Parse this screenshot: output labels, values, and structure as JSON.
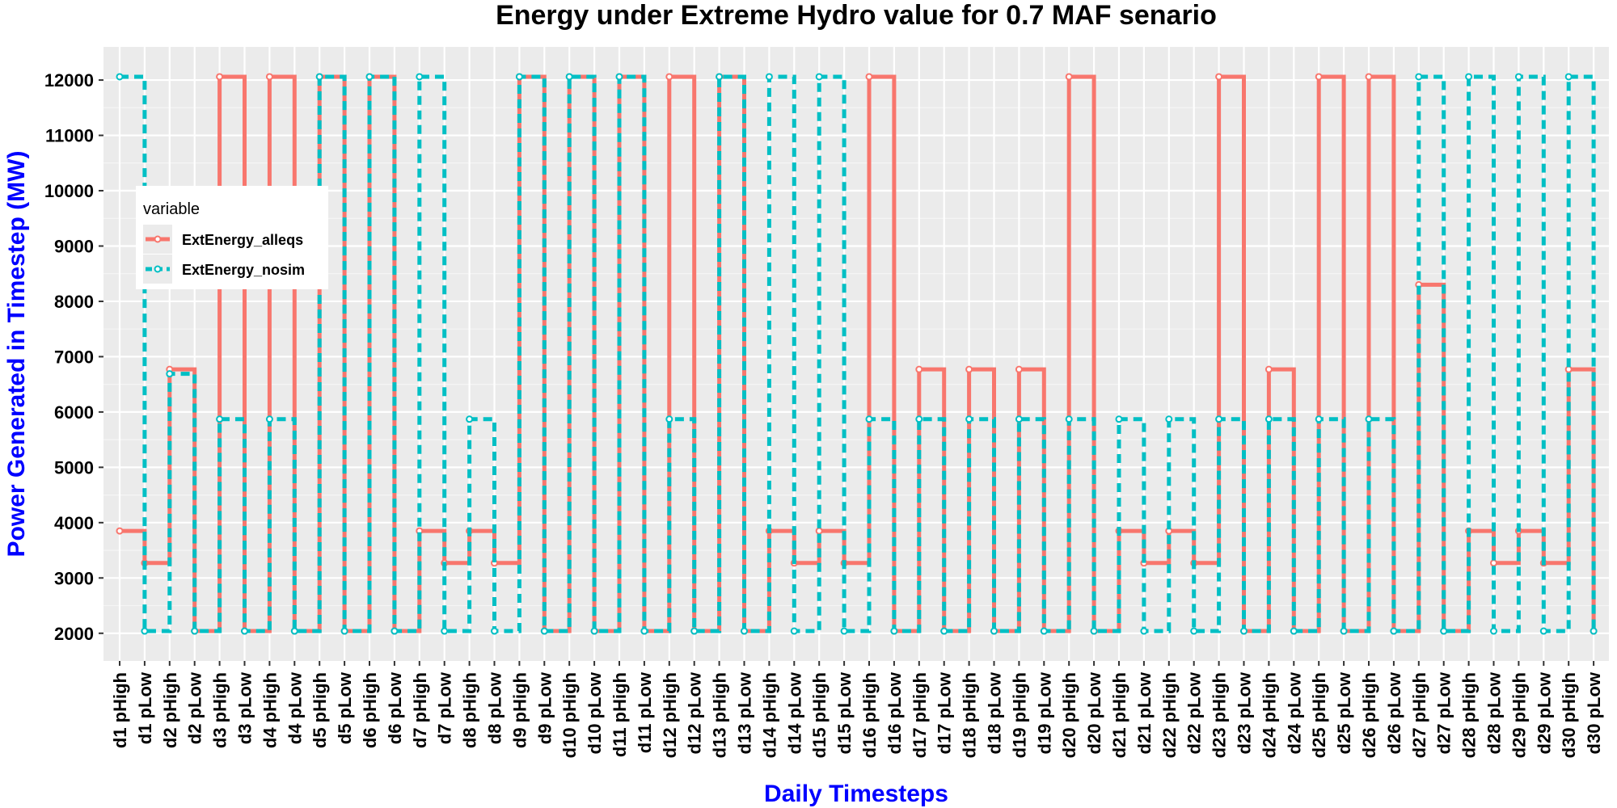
{
  "chart_data": {
    "type": "line",
    "step": true,
    "title": "Energy under Extreme Hydro value for 0.7 MAF senario",
    "xlabel": "Daily Timesteps",
    "ylabel": "Power Generated in Timestep (MW)",
    "ylim": [
      1500,
      12600
    ],
    "yticks": [
      2000,
      3000,
      4000,
      5000,
      6000,
      7000,
      8000,
      9000,
      10000,
      11000,
      12000
    ],
    "grid": true,
    "legend": {
      "title": "variable",
      "position": "top-left"
    },
    "categories": [
      "d1 pHigh",
      "d1 pLow",
      "d2 pHigh",
      "d2 pLow",
      "d3 pHigh",
      "d3 pLow",
      "d4 pHigh",
      "d4 pLow",
      "d5 pHigh",
      "d5 pLow",
      "d6 pHigh",
      "d6 pLow",
      "d7 pHigh",
      "d7 pLow",
      "d8 pHigh",
      "d8 pLow",
      "d9 pHigh",
      "d9 pLow",
      "d10 pHigh",
      "d10 pLow",
      "d11 pHigh",
      "d11 pLow",
      "d12 pHigh",
      "d12 pLow",
      "d13 pHigh",
      "d13 pLow",
      "d14 pHigh",
      "d14 pLow",
      "d15 pHigh",
      "d15 pLow",
      "d16 pHigh",
      "d16 pLow",
      "d17 pHigh",
      "d17 pLow",
      "d18 pHigh",
      "d18 pLow",
      "d19 pHigh",
      "d19 pLow",
      "d20 pHigh",
      "d20 pLow",
      "d21 pHigh",
      "d21 pLow",
      "d22 pHigh",
      "d22 pLow",
      "d23 pHigh",
      "d23 pLow",
      "d24 pHigh",
      "d24 pLow",
      "d25 pHigh",
      "d25 pLow",
      "d26 pHigh",
      "d26 pLow",
      "d27 pHigh",
      "d27 pLow",
      "d28 pHigh",
      "d28 pLow",
      "d29 pHigh",
      "d29 pLow",
      "d30 pHigh",
      "d30 pLow"
    ],
    "series": [
      {
        "name": "ExtEnergy_alleqs",
        "color": "#f8766d",
        "linestyle": "solid",
        "values": [
          3850,
          3270,
          6770,
          2040,
          12060,
          2040,
          12060,
          2040,
          12060,
          2040,
          12060,
          2040,
          3850,
          3270,
          3850,
          3270,
          12060,
          2040,
          12060,
          2040,
          12060,
          2040,
          12060,
          2040,
          12060,
          2040,
          3850,
          3270,
          3850,
          3270,
          12060,
          2040,
          6770,
          2040,
          6770,
          2040,
          6770,
          2040,
          12060,
          2040,
          3850,
          3270,
          3850,
          3270,
          12060,
          2040,
          6770,
          2040,
          12060,
          2040,
          12060,
          2040,
          8300,
          2040,
          3850,
          3270,
          3850,
          3270,
          6770,
          2040
        ]
      },
      {
        "name": "ExtEnergy_nosim",
        "color": "#00bfc4",
        "linestyle": "dashed",
        "values": [
          12060,
          2040,
          6690,
          2040,
          5870,
          2040,
          5870,
          2040,
          12060,
          2040,
          12060,
          2040,
          12060,
          2040,
          5870,
          2040,
          12060,
          2040,
          12060,
          2040,
          12060,
          2040,
          5870,
          2040,
          12060,
          2040,
          12060,
          2040,
          12060,
          2040,
          5870,
          2040,
          5870,
          2040,
          5870,
          2040,
          5870,
          2040,
          5870,
          2040,
          5870,
          2040,
          5870,
          2040,
          5870,
          2040,
          5870,
          2040,
          5870,
          2040,
          5870,
          2040,
          12060,
          2040,
          12060,
          2040,
          12060,
          2040,
          12060,
          2040
        ]
      }
    ]
  }
}
